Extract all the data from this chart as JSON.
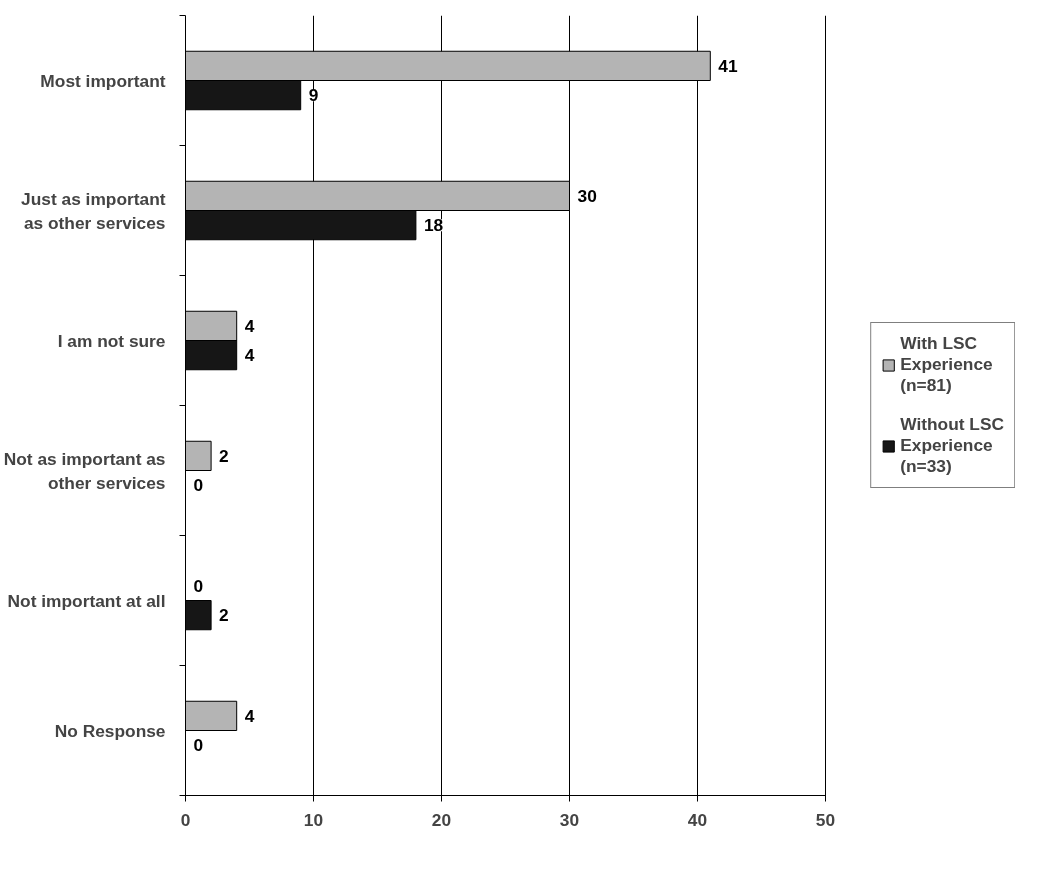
{
  "chart_data": {
    "type": "bar",
    "orientation": "horizontal",
    "categories": [
      "Most important",
      "Just as important\nas other services",
      "I am not sure",
      "Not as important as\nother services",
      "Not important at all",
      "No Response"
    ],
    "series": [
      {
        "name": "With LSC\nExperience\n(n=81)",
        "color": "#b4b4b4",
        "values": [
          41,
          30,
          4,
          2,
          0,
          4
        ]
      },
      {
        "name": "Without LSC\nExperience\n(n=33)",
        "color": "#161616",
        "values": [
          9,
          18,
          4,
          0,
          2,
          0
        ]
      }
    ],
    "xlim": [
      0,
      50
    ],
    "xticks": [
      0,
      10,
      20,
      30,
      40,
      50
    ],
    "grid": "x",
    "legend": "right",
    "data_labels": true
  }
}
